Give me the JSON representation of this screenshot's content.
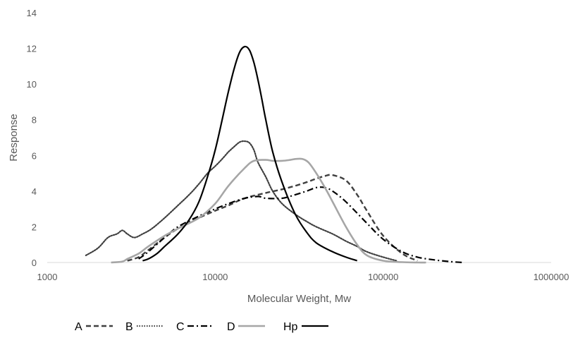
{
  "chart_data": {
    "type": "line",
    "title": "",
    "xlabel": "Molecular Weight, Mw",
    "ylabel": "Response",
    "x_scale": "log",
    "xlim": [
      1000,
      1000000
    ],
    "ylim": [
      0,
      14
    ],
    "x_ticks": [
      1000,
      10000,
      100000,
      1000000
    ],
    "x_tick_labels": [
      "1000",
      "10000",
      "100000",
      "1000000"
    ],
    "y_ticks": [
      0,
      2,
      4,
      6,
      8,
      10,
      12,
      14
    ],
    "y_tick_labels": [
      "0",
      "2",
      "4",
      "6",
      "8",
      "10",
      "12",
      "14"
    ],
    "grid": false,
    "legend_position": "bottom-left",
    "series": [
      {
        "name": "A",
        "color": "#404040",
        "dash": "dashed",
        "x": [
          3000,
          3500,
          4000,
          5000,
          6000,
          8000,
          10000,
          12000,
          15000,
          20000,
          25000,
          30000,
          35000,
          40000,
          45000,
          50000,
          60000,
          70000,
          80000,
          100000,
          130000,
          160000
        ],
        "y": [
          0.1,
          0.3,
          0.7,
          1.4,
          1.9,
          2.5,
          2.9,
          3.2,
          3.6,
          3.9,
          4.1,
          4.3,
          4.5,
          4.7,
          4.85,
          4.9,
          4.6,
          3.8,
          2.9,
          1.5,
          0.5,
          0.1
        ]
      },
      {
        "name": "B",
        "color": "#404040",
        "dash": "dotted",
        "x": [
          1700,
          2000,
          2300,
          2600,
          2800,
          3000,
          3300,
          3700,
          4200,
          5000,
          6000,
          7000,
          8000,
          9000,
          10000,
          11000,
          12000,
          13000,
          14000,
          15000,
          16000,
          17000,
          18000,
          20000,
          22000,
          25000,
          30000,
          35000,
          40000,
          50000,
          60000,
          70000,
          80000,
          100000,
          120000
        ],
        "y": [
          0.4,
          0.8,
          1.4,
          1.6,
          1.8,
          1.6,
          1.4,
          1.6,
          1.9,
          2.5,
          3.2,
          3.8,
          4.4,
          5.0,
          5.4,
          5.8,
          6.2,
          6.5,
          6.75,
          6.8,
          6.7,
          6.3,
          5.6,
          4.8,
          4.0,
          3.3,
          2.7,
          2.3,
          2.0,
          1.6,
          1.2,
          0.9,
          0.6,
          0.3,
          0.1
        ]
      },
      {
        "name": "C",
        "color": "#000000",
        "dash": "dashdot",
        "x": [
          3500,
          4000,
          5000,
          6000,
          8000,
          10000,
          12000,
          15000,
          18000,
          20000,
          25000,
          30000,
          35000,
          40000,
          45000,
          50000,
          60000,
          80000,
          100000,
          130000,
          160000,
          200000,
          250000,
          300000
        ],
        "y": [
          0.2,
          0.6,
          1.4,
          2.0,
          2.6,
          3.0,
          3.3,
          3.6,
          3.7,
          3.6,
          3.6,
          3.8,
          4.0,
          4.2,
          4.2,
          4.0,
          3.4,
          2.2,
          1.3,
          0.6,
          0.3,
          0.15,
          0.05,
          0.0
        ]
      },
      {
        "name": "D",
        "color": "#a6a6a6",
        "dash": "solid",
        "x": [
          2400,
          2800,
          3000,
          3500,
          4000,
          5000,
          6000,
          8000,
          10000,
          12000,
          15000,
          17000,
          20000,
          22000,
          25000,
          28000,
          30000,
          33000,
          36000,
          40000,
          45000,
          50000,
          60000,
          70000,
          80000,
          100000,
          130000,
          160000,
          180000
        ],
        "y": [
          0.0,
          0.05,
          0.2,
          0.5,
          0.9,
          1.5,
          1.9,
          2.5,
          3.3,
          4.3,
          5.3,
          5.7,
          5.75,
          5.7,
          5.7,
          5.75,
          5.8,
          5.8,
          5.6,
          5.0,
          4.2,
          3.4,
          2.0,
          1.0,
          0.4,
          0.1,
          0.02,
          0.0,
          0.0
        ]
      },
      {
        "name": "Hp",
        "color": "#000000",
        "dash": "solid",
        "x": [
          3700,
          4000,
          4500,
          5000,
          6000,
          7000,
          8000,
          9000,
          10000,
          11000,
          12000,
          13000,
          14000,
          15000,
          16000,
          17000,
          18000,
          19000,
          20000,
          22000,
          25000,
          30000,
          35000,
          40000,
          50000,
          60000,
          70000
        ],
        "y": [
          0.1,
          0.2,
          0.5,
          0.9,
          1.6,
          2.4,
          3.4,
          4.8,
          6.3,
          8.0,
          9.6,
          10.9,
          11.8,
          12.1,
          11.9,
          11.2,
          10.2,
          9.1,
          8.0,
          6.2,
          4.5,
          2.7,
          1.7,
          1.1,
          0.6,
          0.3,
          0.1
        ]
      }
    ]
  }
}
